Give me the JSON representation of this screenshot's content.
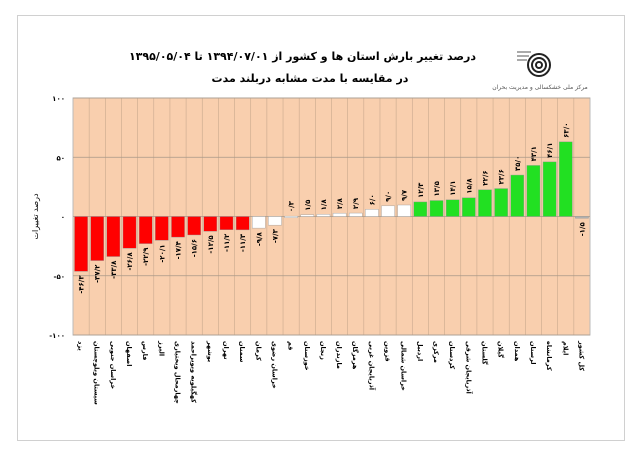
{
  "header": {
    "title": "درصد تغییر بارش استان ها و کشور از ۱۳۹۴/۰۷/۰۱ تا ۱۳۹۵/۰۵/۰۴",
    "subtitle": "در مقایسه با مدت مشابه دربلند مدت",
    "logo_text": "مرکز ملی خشکسالی و مدیریت بحران"
  },
  "colors": {
    "plot_bg": "#f9cfae",
    "negative": "#ff0000",
    "neutral": "#ffffff",
    "positive": "#22e022",
    "total": "#b0b0b0"
  },
  "chart_data": {
    "type": "bar",
    "title": "درصد تغییر بارش استان ها و کشور از ۱۳۹۴/۰۷/۰۱ تا ۱۳۹۵/۰۵/۰۴",
    "ylabel": "درصد تغییرات",
    "ylim": [
      -100,
      100
    ],
    "yticks": [
      100,
      50,
      0,
      -50,
      -100
    ],
    "ytick_labels": [
      "۱۰۰",
      "۵۰",
      "۰",
      "-۵۰",
      "-۱۰۰"
    ],
    "categories": [
      "یزد",
      "سیستان وبلوچستان",
      "خراسان جنوبی",
      "اصفهان",
      "فارس",
      "البرز",
      "چهارمحال وبختیاری",
      "کهگیلویه وبویراحمد",
      "بوشهر",
      "تهران",
      "سمنان",
      "کرمان",
      "خراسان رضوی",
      "قم",
      "خوزستان",
      "زنجان",
      "مازندران",
      "هرمزگان",
      "آذربایجان غربی",
      "قزوین",
      "خراسان شمالی",
      "اردبیل",
      "مرکزی",
      "کردستان",
      "آذربایجان شرقی",
      "گلستان",
      "گیلان",
      "همدان",
      "لرستان",
      "کرمانشاه",
      "ایلام",
      "کل کشور"
    ],
    "values": [
      -46.3,
      -37.2,
      -33.8,
      -26.8,
      -22.9,
      -20.1,
      -17.4,
      -15.6,
      -12.5,
      -11.2,
      -11.3,
      -9.8,
      -7.3,
      0.3,
      1.5,
      1.8,
      2.8,
      2.9,
      6.0,
      9.0,
      9.7,
      12.3,
      13.5,
      14.1,
      15.8,
      22.6,
      23.6,
      35.0,
      43.1,
      46.1,
      63.0,
      -1.5
    ],
    "value_labels": [
      "-۴۶/۳",
      "-۳۷/۲",
      "-۳۳/۸",
      "-۲۶/۸",
      "-۲۲/۹",
      "-۲۰/۱",
      "-۱۷/۴",
      "-۱۵/۶",
      "-۱۲/۵",
      "-۱۱/۲",
      "-۱۱/۳",
      "-۹/۸",
      "-۷/۳",
      "۰/۳",
      "۱/۵",
      "۱/۸",
      "۲/۸",
      "۲/۹",
      "۶/۰",
      "۹/۰",
      "۹/۷",
      "۱۲/۳",
      "۱۳/۵",
      "۱۴/۱",
      "۱۵/۸",
      "۲۲/۶",
      "۲۳/۶",
      "۳۵/۰",
      "۴۳/۱",
      "۴۶/۱",
      "۶۳/۰",
      "-۱/۵"
    ],
    "grid": true
  }
}
